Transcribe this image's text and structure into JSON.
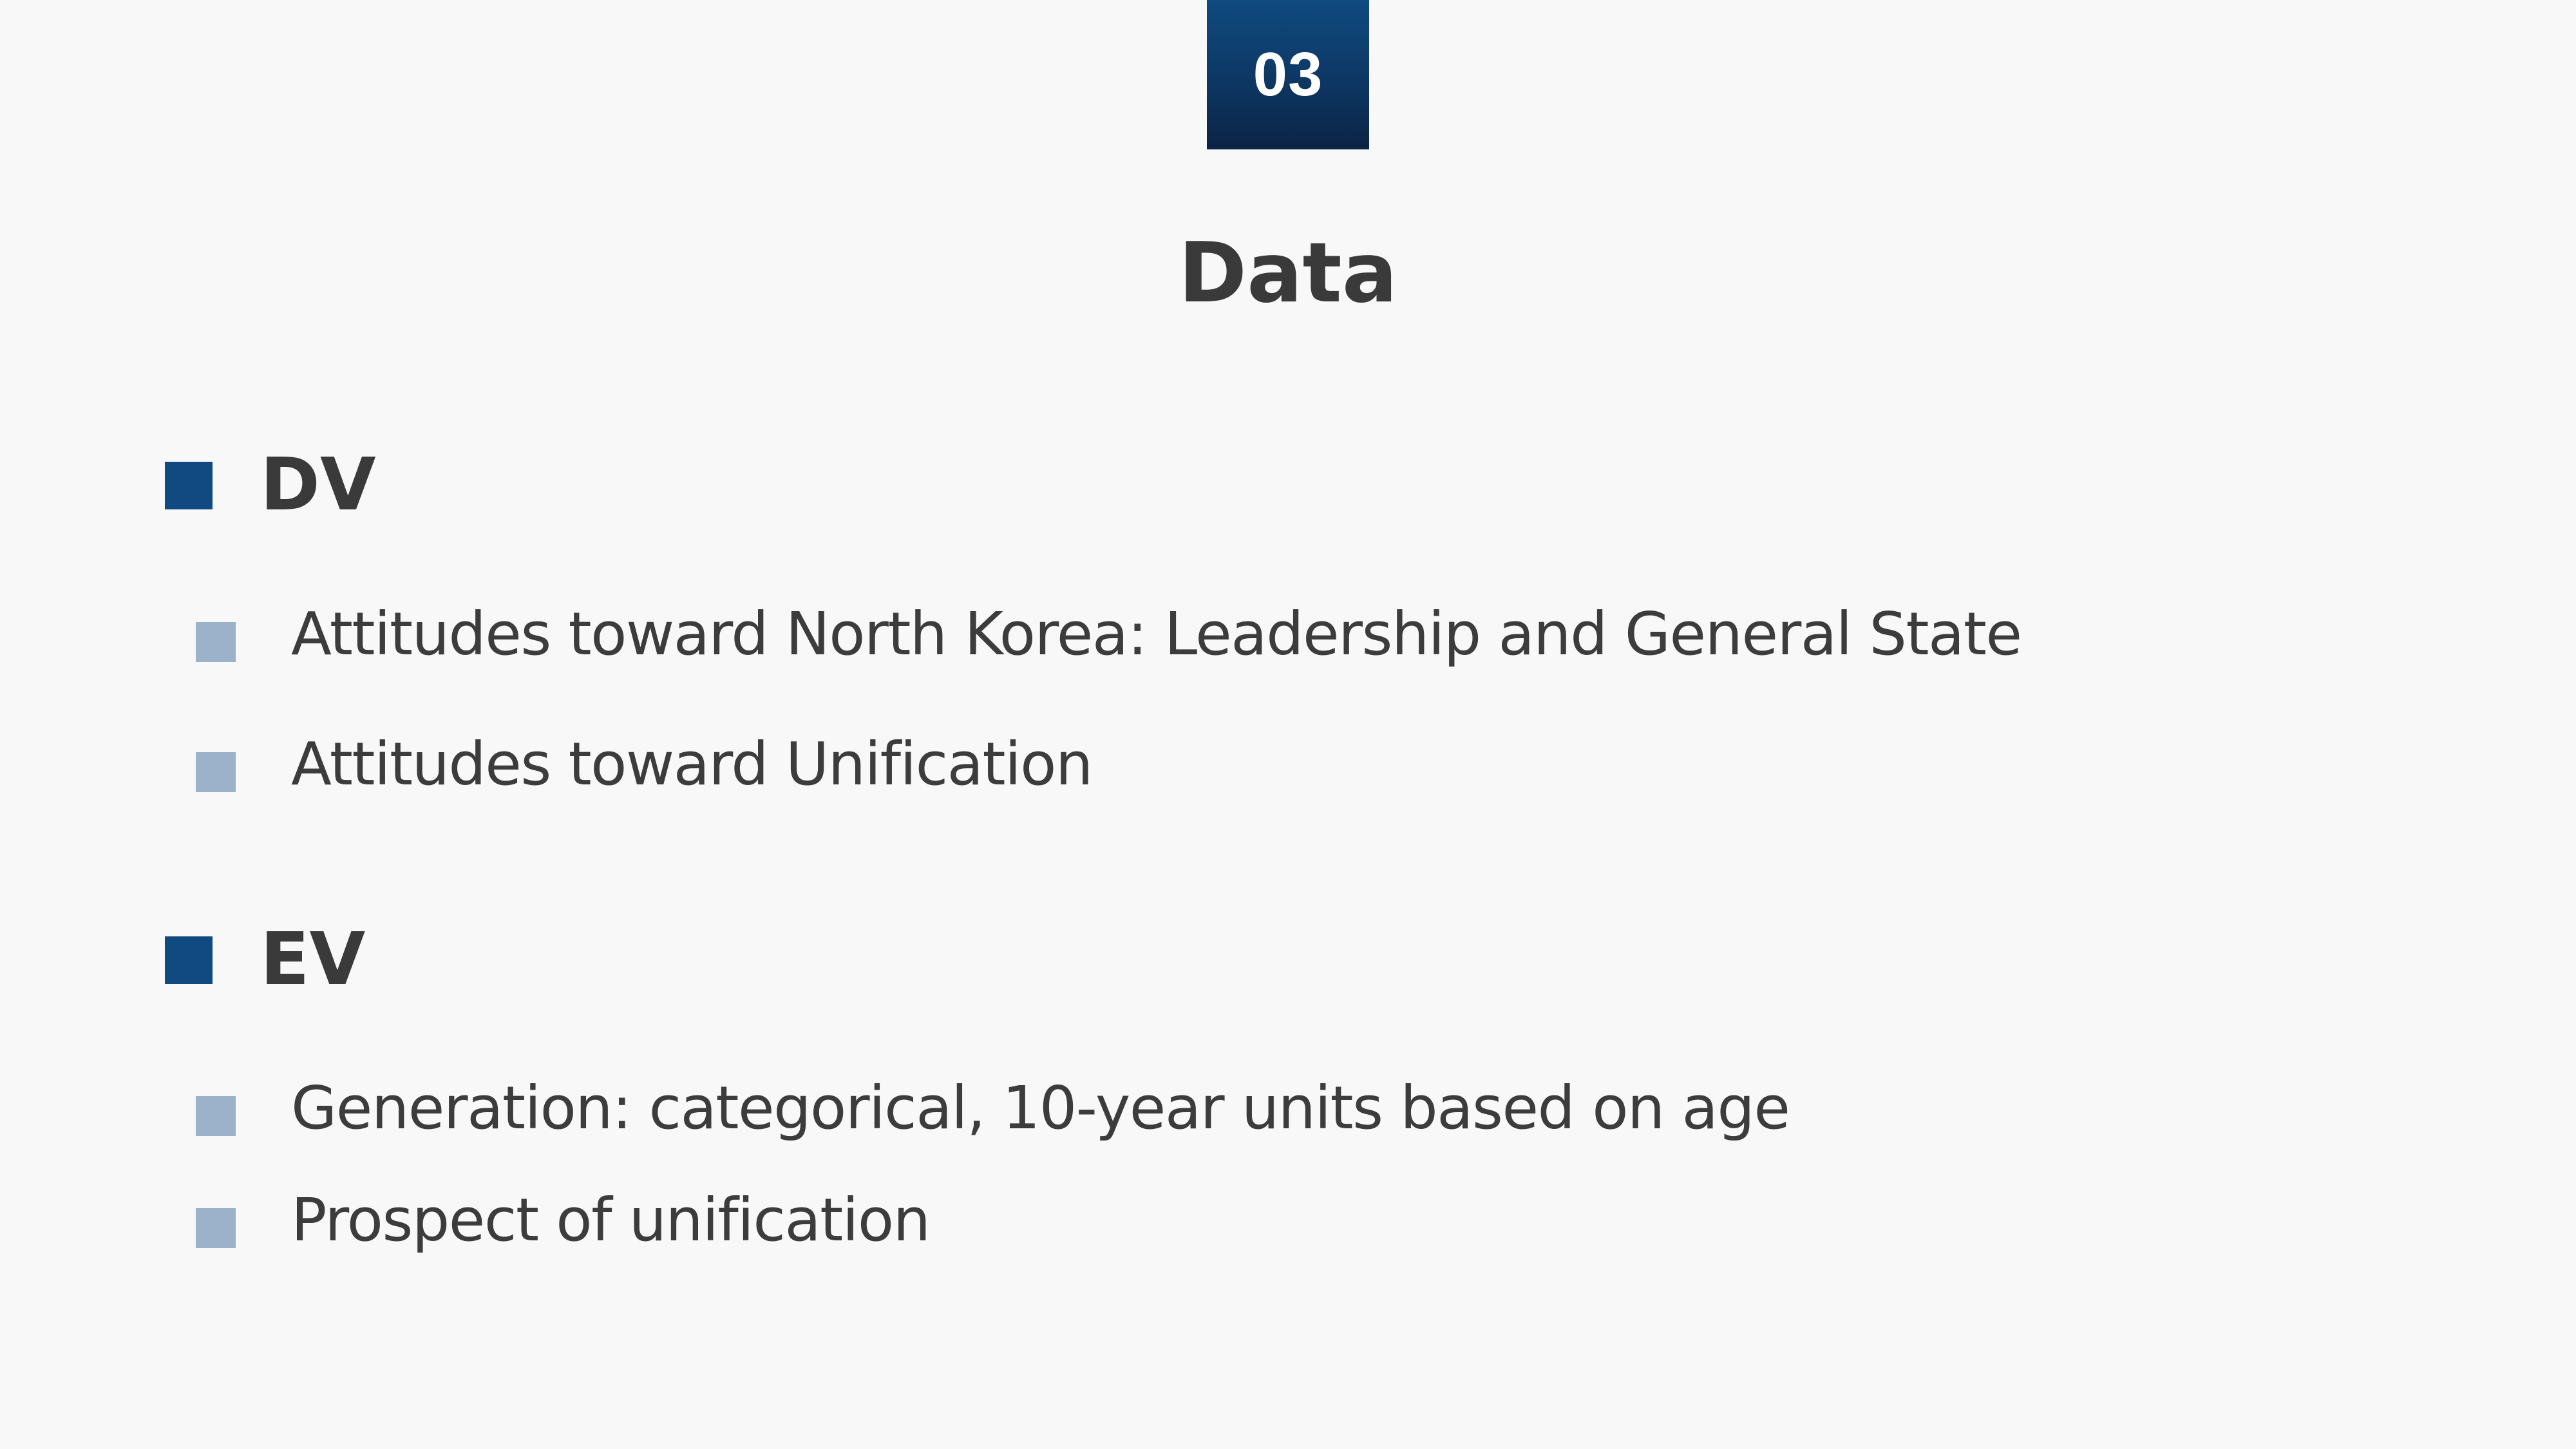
{
  "section": {
    "number": "03",
    "title": "Data"
  },
  "groups": [
    {
      "heading": "DV",
      "items": [
        "Attitudes toward North Korea: Leadership and General State",
        "Attitudes toward Unification"
      ]
    },
    {
      "heading": "EV",
      "items": [
        "Generation: categorical, 10-year units based on age",
        "Prospect of unification"
      ]
    }
  ],
  "colors": {
    "badge_top": "#0f4a80",
    "badge_bottom": "#0b2344",
    "heading_marker": "#114a80",
    "item_marker": "#9bb2ca",
    "text": "#3c3c3c",
    "background": "#f8f8f8"
  }
}
